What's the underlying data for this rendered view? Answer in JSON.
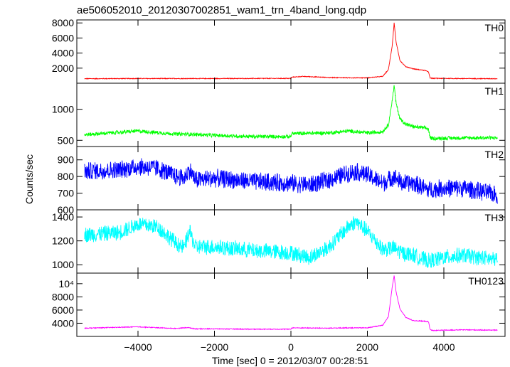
{
  "chart_data": {
    "type": "line",
    "title": "ae506052010_20120307002851_wam1_trn_4band_long.qdp",
    "xlabel": "Time [sec] 0 = 2012/03/07 00:28:51",
    "ylabel": "Counts/sec",
    "xlim": [
      -5600,
      5600
    ],
    "x_ticks": [
      -4000,
      -2000,
      0,
      2000,
      4000
    ],
    "x_tick_labels": [
      "−4000",
      "−2000",
      "0",
      "2000",
      "4000"
    ],
    "grid": false,
    "panels": [
      {
        "name": "TH0",
        "color": "#ff0000",
        "ylim": [
          0,
          8400
        ],
        "y_ticks": [
          2000,
          4000,
          6000,
          8000
        ],
        "y_tick_labels": [
          "2000",
          "4000",
          "6000",
          "8000"
        ],
        "noise": 40,
        "x": [
          -5400,
          -4000,
          -2000,
          0,
          20,
          300,
          600,
          1000,
          1500,
          2000,
          2400,
          2550,
          2650,
          2700,
          2750,
          2850,
          3000,
          3200,
          3500,
          3600,
          3640,
          3700,
          4500,
          5400
        ],
        "y": [
          600,
          620,
          620,
          640,
          800,
          900,
          850,
          750,
          720,
          720,
          900,
          1800,
          5000,
          8000,
          5500,
          3000,
          2200,
          1900,
          1700,
          1500,
          700,
          650,
          620,
          600
        ]
      },
      {
        "name": "TH1",
        "color": "#00ff00",
        "ylim": [
          400,
          1420
        ],
        "y_ticks": [
          500,
          1000
        ],
        "y_tick_labels": [
          "500",
          "1000"
        ],
        "noise": 25,
        "x": [
          -5400,
          -4000,
          -3000,
          -2700,
          -2000,
          -1000,
          0,
          20,
          1000,
          1500,
          2000,
          2400,
          2550,
          2650,
          2700,
          2750,
          2850,
          3000,
          3200,
          3500,
          3600,
          3640,
          3700,
          4500,
          5400
        ],
        "y": [
          590,
          650,
          600,
          600,
          580,
          560,
          560,
          610,
          620,
          650,
          620,
          640,
          750,
          1150,
          1380,
          1100,
          850,
          760,
          720,
          700,
          680,
          540,
          530,
          540,
          540
        ]
      },
      {
        "name": "TH2",
        "color": "#0000ff",
        "ylim": [
          600,
          980
        ],
        "y_ticks": [
          600,
          700,
          800,
          900
        ],
        "y_tick_labels": [
          "600",
          "700",
          "800",
          "900"
        ],
        "noise": 45,
        "x": [
          -5400,
          -4500,
          -4000,
          -3500,
          -3000,
          -2800,
          -2650,
          -2500,
          -2000,
          -1000,
          0,
          500,
          1000,
          1500,
          1700,
          2000,
          2400,
          2700,
          2900,
          3200,
          3600,
          4000,
          4500,
          5400
        ],
        "y": [
          830,
          840,
          860,
          850,
          800,
          790,
          840,
          780,
          790,
          770,
          760,
          750,
          780,
          820,
          830,
          810,
          760,
          800,
          760,
          760,
          720,
          730,
          730,
          690
        ]
      },
      {
        "name": "TH3",
        "color": "#00ffff",
        "ylim": [
          930,
          1460
        ],
        "y_ticks": [
          1000,
          1200,
          1400
        ],
        "y_tick_labels": [
          "1000",
          "1200",
          "1400"
        ],
        "noise": 55,
        "x": [
          -5400,
          -4500,
          -4000,
          -3500,
          -3000,
          -2800,
          -2650,
          -2500,
          -2000,
          -1000,
          0,
          500,
          1000,
          1500,
          1700,
          2000,
          2400,
          2700,
          2900,
          3200,
          3600,
          4000,
          4500,
          5400
        ],
        "y": [
          1250,
          1270,
          1340,
          1320,
          1180,
          1140,
          1280,
          1150,
          1150,
          1120,
          1100,
          1060,
          1150,
          1320,
          1360,
          1280,
          1130,
          1140,
          1100,
          1080,
          1030,
          1060,
          1080,
          1040
        ]
      },
      {
        "name": "TH0123",
        "color": "#ff00ff",
        "ylim": [
          2000,
          11600
        ],
        "y_ticks": [
          4000,
          6000,
          8000,
          10000
        ],
        "y_tick_labels": [
          "4000",
          "6000",
          "8000",
          "10⁴"
        ],
        "noise": 50,
        "x": [
          -5400,
          -4000,
          -3000,
          -2700,
          -2500,
          -2000,
          -1000,
          0,
          20,
          1000,
          1500,
          2000,
          2400,
          2550,
          2650,
          2700,
          2750,
          2850,
          3000,
          3200,
          3500,
          3600,
          3640,
          3700,
          4500,
          5400
        ],
        "y": [
          3250,
          3450,
          3200,
          3350,
          3150,
          3150,
          3100,
          3100,
          3300,
          3250,
          3300,
          3300,
          3700,
          5000,
          9500,
          11200,
          8800,
          6200,
          4900,
          4400,
          4300,
          4200,
          3050,
          2900,
          3000,
          2950
        ]
      }
    ]
  }
}
